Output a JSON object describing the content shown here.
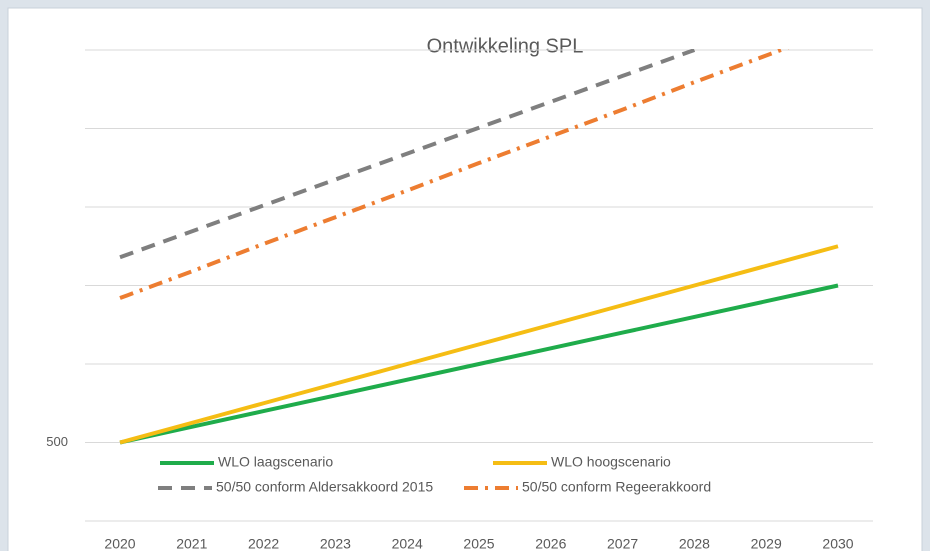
{
  "chart_data": {
    "type": "line",
    "title": "Ontwikkeling SPL",
    "x": [
      2020,
      2021,
      2022,
      2023,
      2024,
      2025,
      2026,
      2027,
      2028,
      2029,
      2030
    ],
    "series": [
      {
        "name": "WLO laagscenario",
        "color": "#1fac4b",
        "dash": "solid",
        "values": [
          500,
          520,
          540,
          560,
          580,
          600,
          620,
          640,
          660,
          680,
          700
        ]
      },
      {
        "name": "WLO hoogscenario",
        "color": "#f5bd14",
        "dash": "solid",
        "values": [
          500,
          525,
          550,
          575,
          600,
          625,
          650,
          675,
          700,
          725,
          750
        ]
      },
      {
        "name": "50/50 conform Aldersakkoord 2015",
        "color": "#7f7f7f",
        "dash": "dash",
        "values": [
          736,
          769,
          802,
          835,
          868,
          901,
          934,
          967,
          1000,
          null,
          null
        ]
      },
      {
        "name": "50/50 conform Regeerakkoord",
        "color": "#ed7d31",
        "dash": "dashdot",
        "values": [
          684,
          718,
          753,
          787,
          821,
          856,
          890,
          924,
          959,
          993,
          1027
        ]
      }
    ],
    "ylim": [
      400,
      1000
    ],
    "yticks": [
      500
    ],
    "gridlines": [
      400,
      600,
      700,
      800,
      900,
      1000
    ]
  }
}
